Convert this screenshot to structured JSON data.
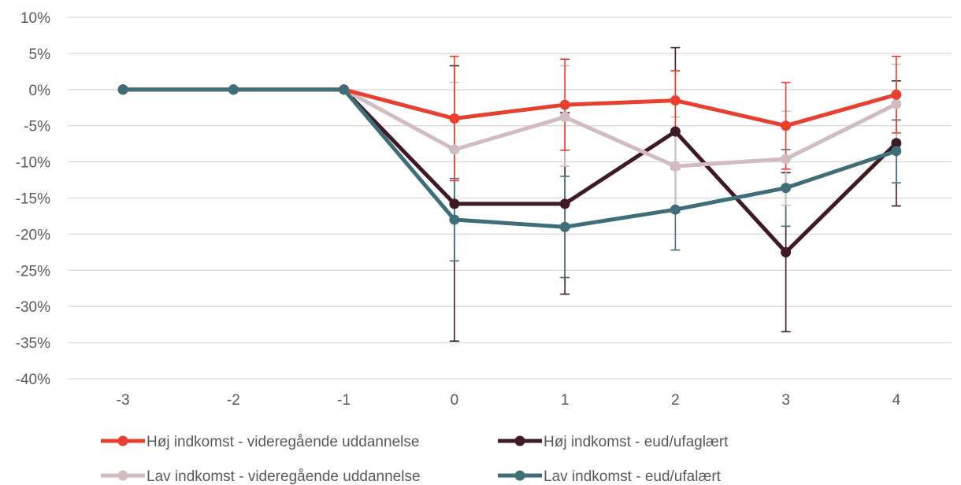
{
  "chart_data": {
    "type": "line",
    "title": "",
    "xlabel": "",
    "ylabel": "",
    "x": [
      "-3",
      "-2",
      "-1",
      "0",
      "1",
      "2",
      "3",
      "4"
    ],
    "ylim": [
      -40,
      10
    ],
    "y_ticks": [
      10,
      5,
      0,
      -5,
      -10,
      -15,
      -20,
      -25,
      -30,
      -35,
      -40
    ],
    "y_tick_labels": [
      "10%",
      "5%",
      "0%",
      "-5%",
      "-10%",
      "-15%",
      "-20%",
      "-25%",
      "-30%",
      "-35%",
      "-40%"
    ],
    "grid": "horizontal",
    "legend_position": "bottom",
    "series": [
      {
        "name": "Høj indkomst - videregående uddannelse",
        "color": "#E8402E",
        "values": [
          0,
          0,
          0,
          -4.0,
          -2.1,
          -1.5,
          -5.0,
          -0.7
        ],
        "err_low": [
          null,
          null,
          null,
          -12.6,
          -8.4,
          -5.8,
          -11.0,
          -6.0
        ],
        "err_high": [
          null,
          null,
          null,
          4.6,
          4.2,
          2.6,
          1.0,
          4.6
        ]
      },
      {
        "name": "Høj indkomst - eud/ufaglært",
        "color": "#3D1A24",
        "values": [
          0,
          0,
          0,
          -15.8,
          -15.8,
          -5.8,
          -22.5,
          -7.4
        ],
        "err_low": [
          null,
          null,
          null,
          -34.8,
          -28.3,
          -17.0,
          -33.5,
          -16.1
        ],
        "err_high": [
          null,
          null,
          null,
          3.3,
          -3.2,
          5.8,
          -11.5,
          1.2
        ]
      },
      {
        "name": "Lav indkomst - videregående uddannelse",
        "color": "#D2BCBF",
        "values": [
          0,
          0,
          0,
          -8.3,
          -3.8,
          -10.6,
          -9.6,
          -2.0
        ],
        "err_low": [
          null,
          null,
          null,
          -12.6,
          -10.6,
          -17.0,
          -16.0,
          -8.0
        ],
        "err_high": [
          null,
          null,
          null,
          1.0,
          3.3,
          -3.8,
          -3.0,
          3.5
        ]
      },
      {
        "name": "Lav indkomst - eud/ufalært",
        "color": "#3E6E78",
        "values": [
          0,
          0,
          0,
          -18.0,
          -19.0,
          -16.6,
          -13.6,
          -8.5
        ],
        "err_low": [
          null,
          null,
          null,
          -23.7,
          -26.0,
          -22.2,
          -18.9,
          -12.9
        ],
        "err_high": [
          null,
          null,
          null,
          -12.3,
          -12.0,
          -11.0,
          -8.3,
          -4.2
        ]
      }
    ]
  }
}
